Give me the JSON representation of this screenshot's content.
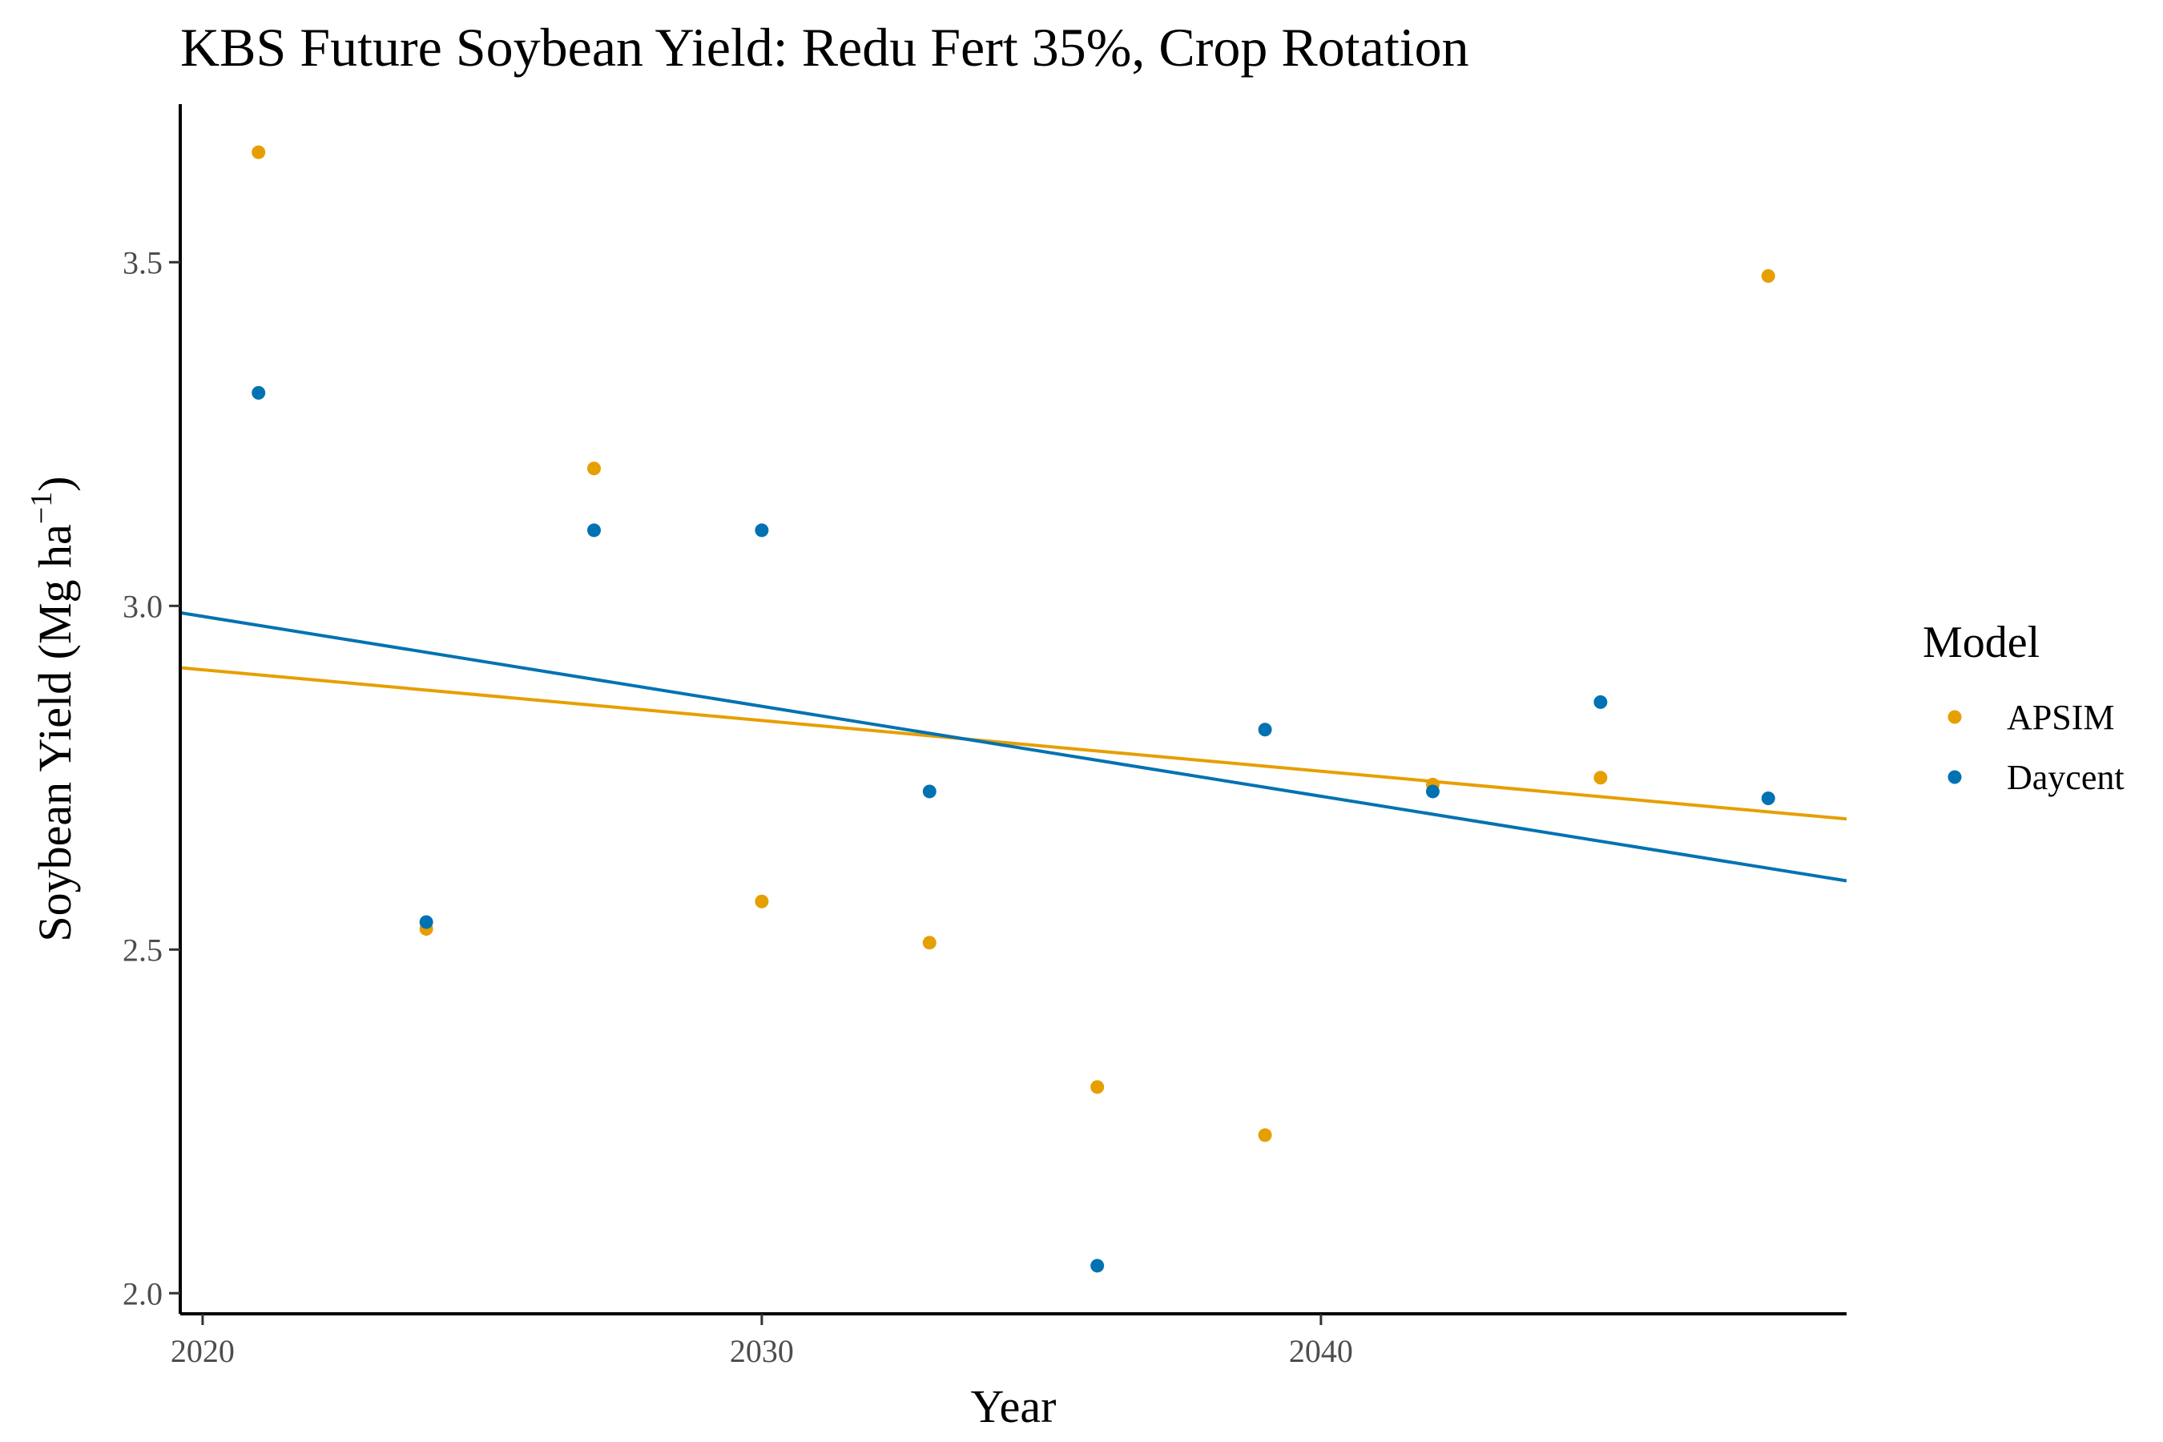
{
  "chart_data": {
    "type": "scatter",
    "title": "KBS Future Soybean Yield:  Redu Fert 35%, Crop Rotation",
    "xlabel": "Year",
    "ylabel_main": "Soybean Yield (Mg ha",
    "ylabel_sup": "−1",
    "ylabel_close": ")",
    "xlim": [
      2019.6,
      2049.4
    ],
    "ylim": [
      1.97,
      3.73
    ],
    "x_ticks": [
      2020,
      2030,
      2040
    ],
    "x_tick_labels": [
      "2020",
      "2030",
      "2040"
    ],
    "y_ticks": [
      2.0,
      2.5,
      3.0,
      3.5
    ],
    "y_tick_labels": [
      "2.0",
      "2.5",
      "3.0",
      "3.5"
    ],
    "grid": false,
    "legend": {
      "title": "Model",
      "placement": "right"
    },
    "series": [
      {
        "name": "APSIM",
        "color": "#E69F00",
        "x": [
          2021,
          2024,
          2027,
          2030,
          2033,
          2036,
          2039,
          2042,
          2045,
          2048
        ],
        "y": [
          3.66,
          2.53,
          3.2,
          2.57,
          2.51,
          2.3,
          2.23,
          2.74,
          2.75,
          3.48
        ],
        "trend": {
          "x": [
            2019.6,
            2049.4
          ],
          "y": [
            2.91,
            2.69
          ]
        }
      },
      {
        "name": "Daycent",
        "color": "#0072B2",
        "x": [
          2021,
          2024,
          2027,
          2030,
          2033,
          2036,
          2039,
          2042,
          2045,
          2048
        ],
        "y": [
          3.31,
          2.54,
          3.11,
          3.11,
          2.73,
          2.04,
          2.82,
          2.73,
          2.86,
          2.72
        ],
        "trend": {
          "x": [
            2019.6,
            2049.4
          ],
          "y": [
            2.99,
            2.6
          ]
        }
      }
    ]
  }
}
